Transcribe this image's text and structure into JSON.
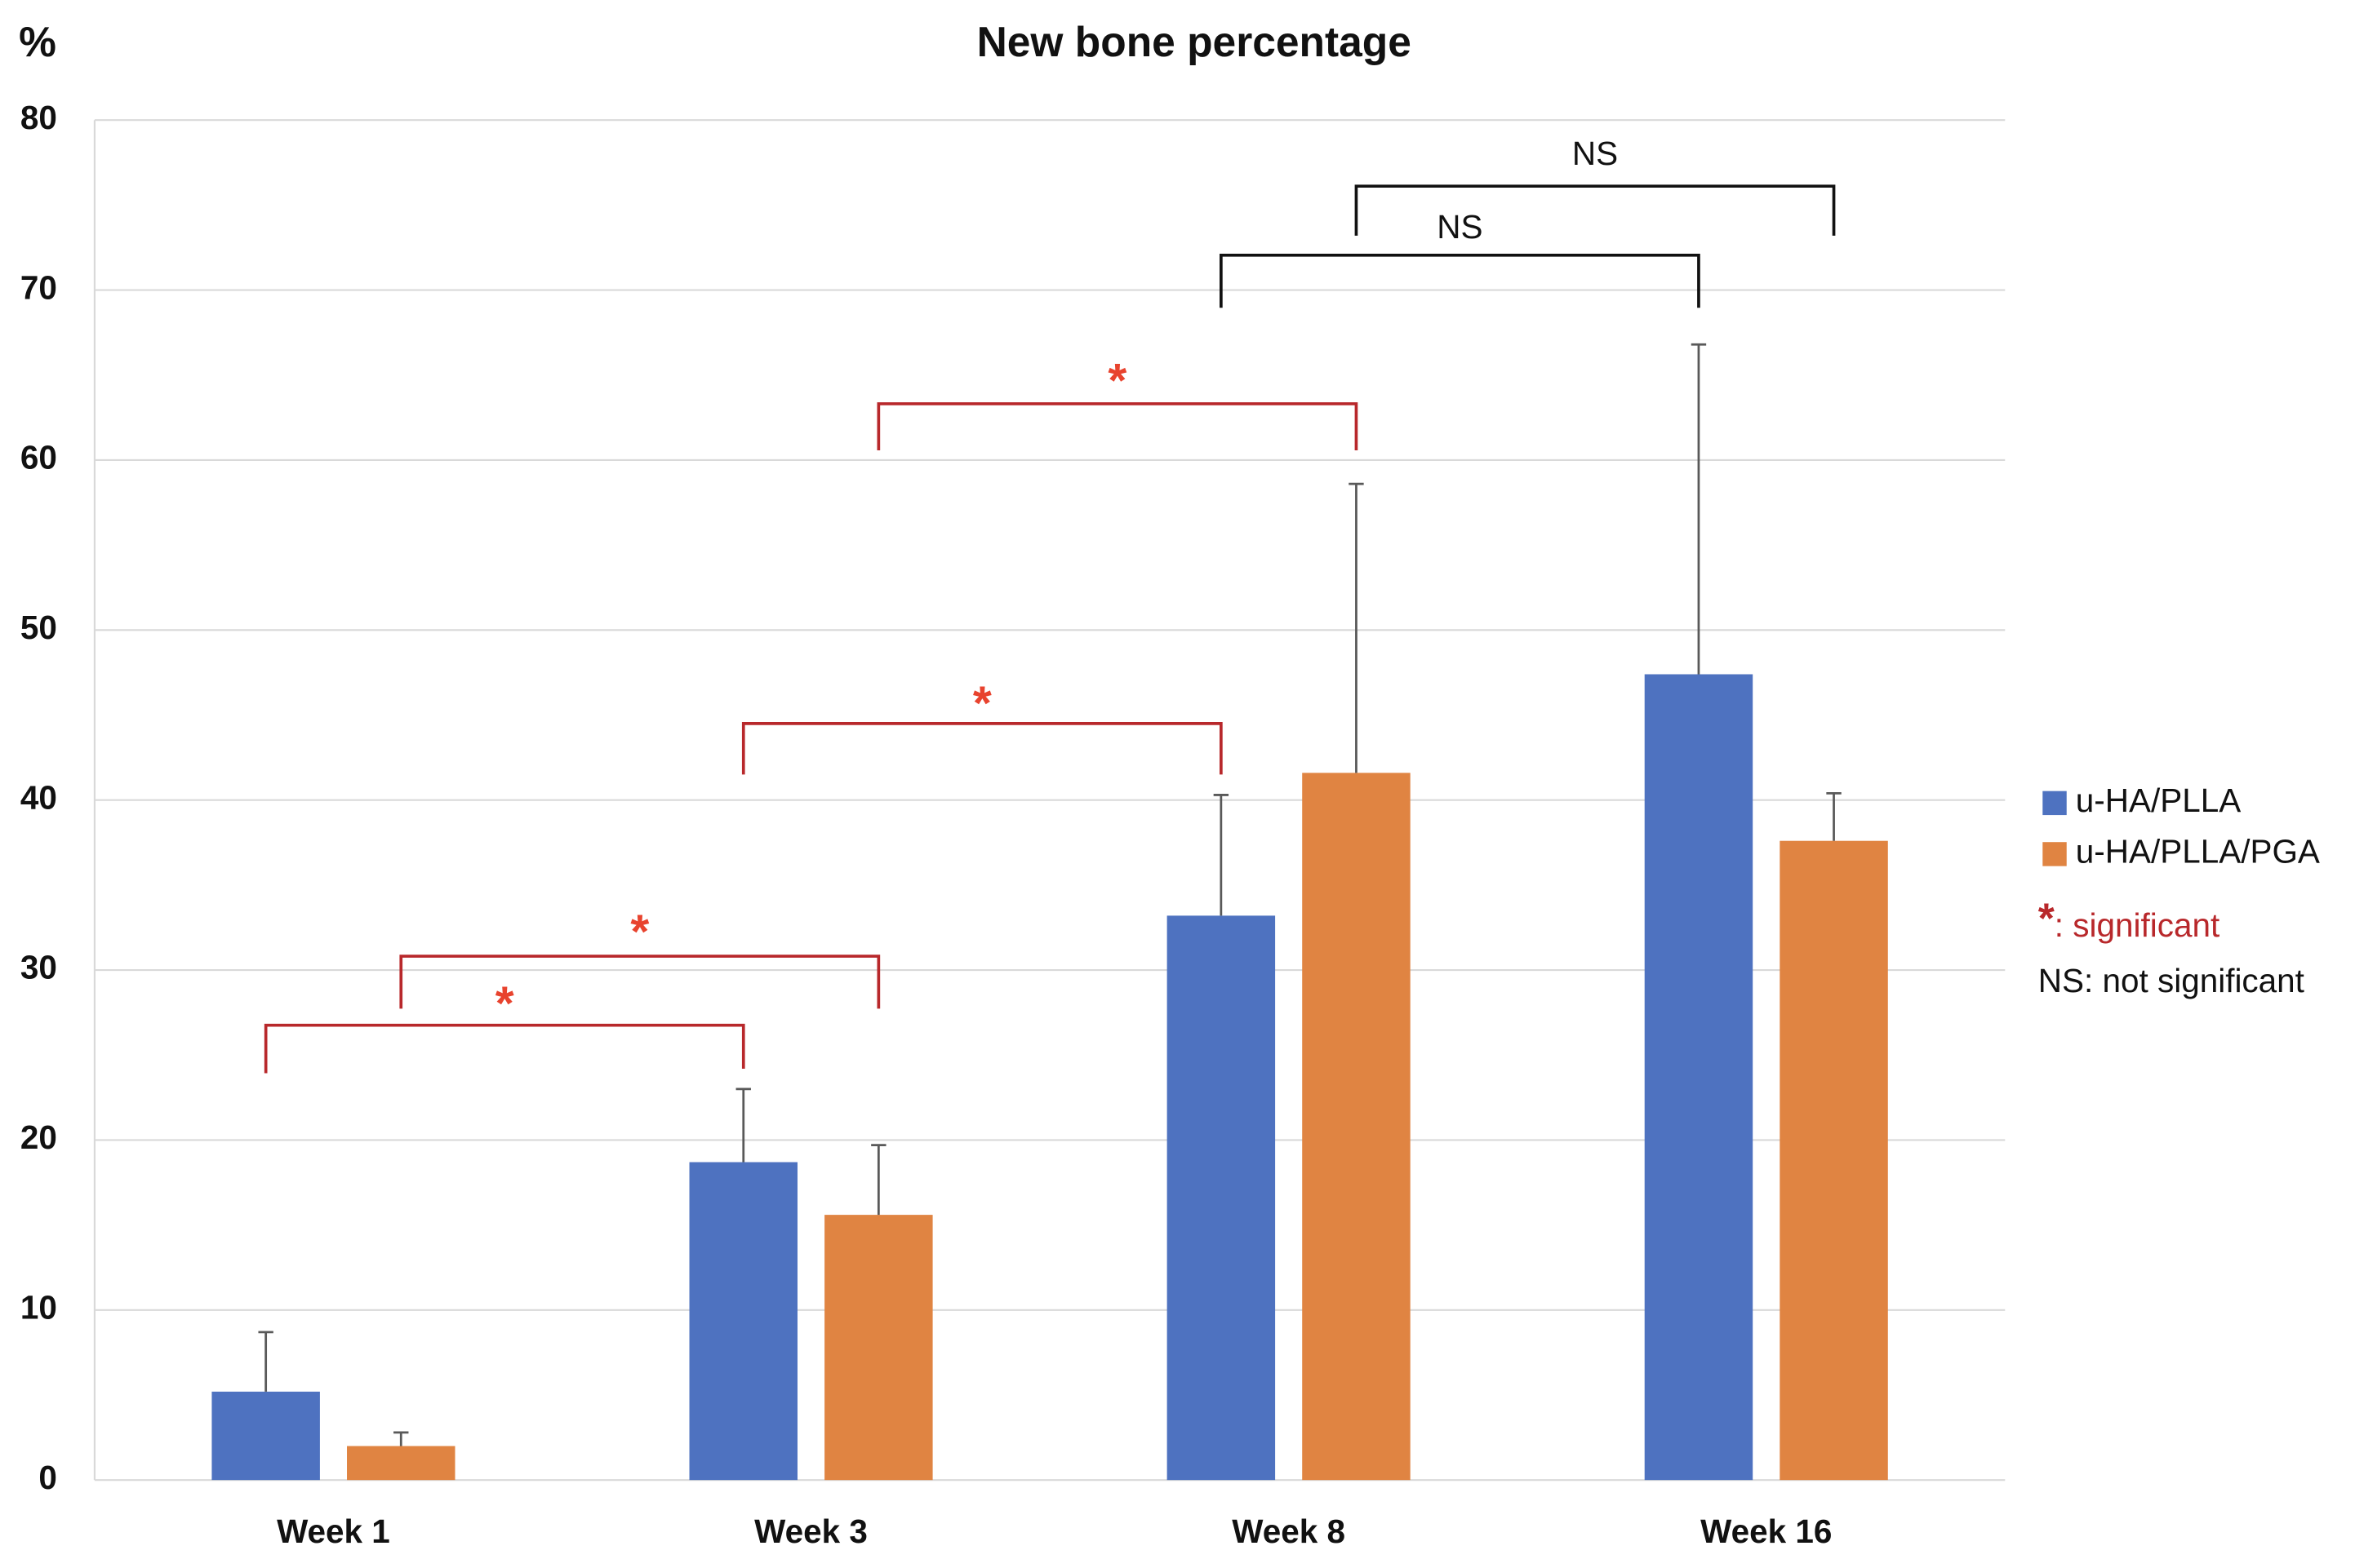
{
  "chart_data": {
    "type": "bar",
    "title": "New bone percentage",
    "y_label": "%",
    "categories": [
      "Week 1",
      "Week 3",
      "Week 8",
      "Week 16"
    ],
    "series": [
      {
        "name": "u-HA/PLLA",
        "color": "#4e72c0",
        "values": [
          5.2,
          18.7,
          33.2,
          47.4
        ],
        "errors": [
          3.5,
          4.3,
          7.1,
          19.4
        ]
      },
      {
        "name": "u-HA/PLLA/PGA",
        "color": "#e08442",
        "values": [
          2.0,
          15.6,
          41.6,
          37.6
        ],
        "errors": [
          0.8,
          4.1,
          17.0,
          2.8
        ]
      }
    ],
    "ylim": [
      0,
      80
    ],
    "yticks": [
      0,
      10,
      20,
      30,
      40,
      50,
      60,
      70,
      80
    ],
    "grid": true,
    "annotations": [
      "*",
      "*",
      "*",
      "*",
      "NS",
      "NS"
    ],
    "notes": [
      {
        "symbol": "*",
        "text": ": significant"
      },
      {
        "text": "NS: not significant"
      }
    ]
  }
}
